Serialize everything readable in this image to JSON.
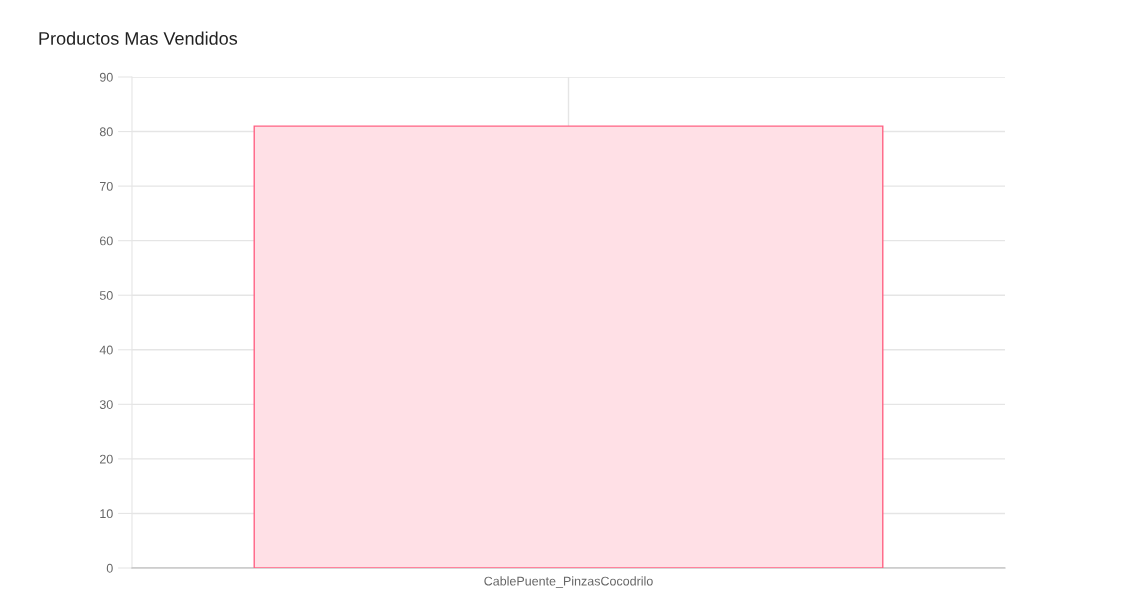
{
  "chart_data": {
    "type": "bar",
    "title": "Productos Mas Vendidos",
    "categories": [
      "CablePuente_PinzasCocodrilo"
    ],
    "series": [
      {
        "color": "#ffe0e6",
        "values": [
          81
        ]
      }
    ],
    "ylim": [
      0,
      90
    ],
    "yticks": [
      0,
      10,
      20,
      30,
      40,
      50,
      60,
      70,
      80,
      90
    ],
    "grid": true
  }
}
